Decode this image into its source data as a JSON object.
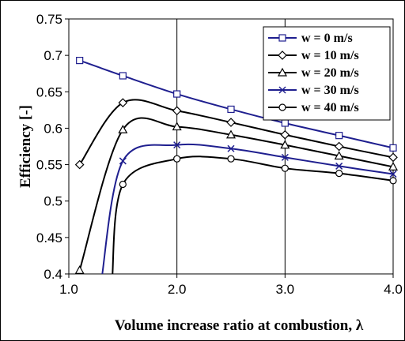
{
  "chart_data": {
    "type": "line",
    "xlabel": "Volume increase ratio at combustion, λ",
    "ylabel": "Efficiency [-]",
    "xlim": [
      1.0,
      4.0
    ],
    "ylim": [
      0.4,
      0.75
    ],
    "xticks": [
      "1.0",
      "2.0",
      "3.0",
      "4.0"
    ],
    "yticks": [
      "0.4",
      "0.45",
      "0.5",
      "0.55",
      "0.6",
      "0.65",
      "0.7",
      "0.75"
    ],
    "grid": "vertical at x ticks",
    "legend_position": "top-right",
    "series": [
      {
        "name": "w =   0 m/s",
        "color": "#1f1f8f",
        "marker": "square",
        "x": [
          1.1,
          1.5,
          2.0,
          2.5,
          3.0,
          3.5,
          4.0
        ],
        "y": [
          0.693,
          0.672,
          0.647,
          0.626,
          0.607,
          0.59,
          0.573
        ]
      },
      {
        "name": "w = 10 m/s",
        "color": "#000000",
        "marker": "diamond",
        "x": [
          1.1,
          1.5,
          2.0,
          2.5,
          3.0,
          3.5,
          4.0
        ],
        "y": [
          0.55,
          0.635,
          0.624,
          0.608,
          0.591,
          0.575,
          0.56
        ]
      },
      {
        "name": "w = 20 m/s",
        "color": "#000000",
        "marker": "triangle",
        "x": [
          1.1,
          1.5,
          2.0,
          2.5,
          3.0,
          3.5,
          4.0
        ],
        "y": [
          0.405,
          0.598,
          0.602,
          0.591,
          0.577,
          0.562,
          0.547
        ]
      },
      {
        "name": "w = 30 m/s",
        "color": "#1f1f8f",
        "marker": "x",
        "x": [
          1.3,
          1.5,
          2.0,
          2.5,
          3.0,
          3.5,
          4.0
        ],
        "y": [
          0.39,
          0.555,
          0.577,
          0.572,
          0.56,
          0.548,
          0.537
        ]
      },
      {
        "name": "w = 40 m/s",
        "color": "#000000",
        "marker": "circle",
        "x": [
          1.4,
          1.5,
          2.0,
          2.5,
          3.0,
          3.5,
          4.0
        ],
        "y": [
          0.39,
          0.523,
          0.558,
          0.558,
          0.545,
          0.538,
          0.528
        ]
      }
    ]
  }
}
